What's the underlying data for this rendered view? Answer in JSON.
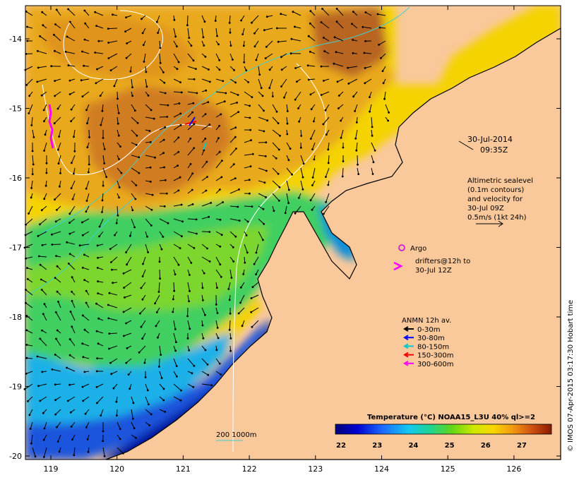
{
  "map": {
    "lon_ticks": [
      "119",
      "120",
      "121",
      "122",
      "123",
      "124",
      "125",
      "126"
    ],
    "lat_ticks": [
      "-14",
      "-15",
      "-16",
      "-17",
      "-18",
      "-19",
      "-20"
    ],
    "date_line1": "30-Jul-2014",
    "date_line2": "09:35Z",
    "altimetry": [
      "Altimetric sealevel",
      "(0.1m contours)",
      "and velocity for",
      "30-Jul 09Z",
      "0.5m/s (1kt 24h)"
    ],
    "argo_label": "Argo",
    "drifter_lines": [
      "drifters@12h to",
      "30-Jul 12Z"
    ],
    "anmn_title": "ANMN 12h av.",
    "anmn_items": [
      {
        "label": "0-30m",
        "color": "#000000"
      },
      {
        "label": "30-80m",
        "color": "#0000ff"
      },
      {
        "label": "80-150m",
        "color": "#00cccc"
      },
      {
        "label": "150-300m",
        "color": "#ff0000"
      },
      {
        "label": "300-600m",
        "color": "#ff00ff"
      }
    ],
    "isobath_label": "200  1000m",
    "colorbar_title": "Temperature (°C) NOAA15_L3U 40% ql>=2",
    "colorbar_ticks": [
      "22",
      "23",
      "24",
      "25",
      "26",
      "27"
    ],
    "credit": "© IMOS 07-Apr-2015 03:17:30 Hobart time",
    "colors": {
      "land": "#f9c89b",
      "plot_bg": "#ffffff",
      "isobath_200": "#3fd0d0",
      "isobath_1000": "#ffffff",
      "argo": "#d000d0",
      "drifter": "#ff00ff"
    }
  }
}
